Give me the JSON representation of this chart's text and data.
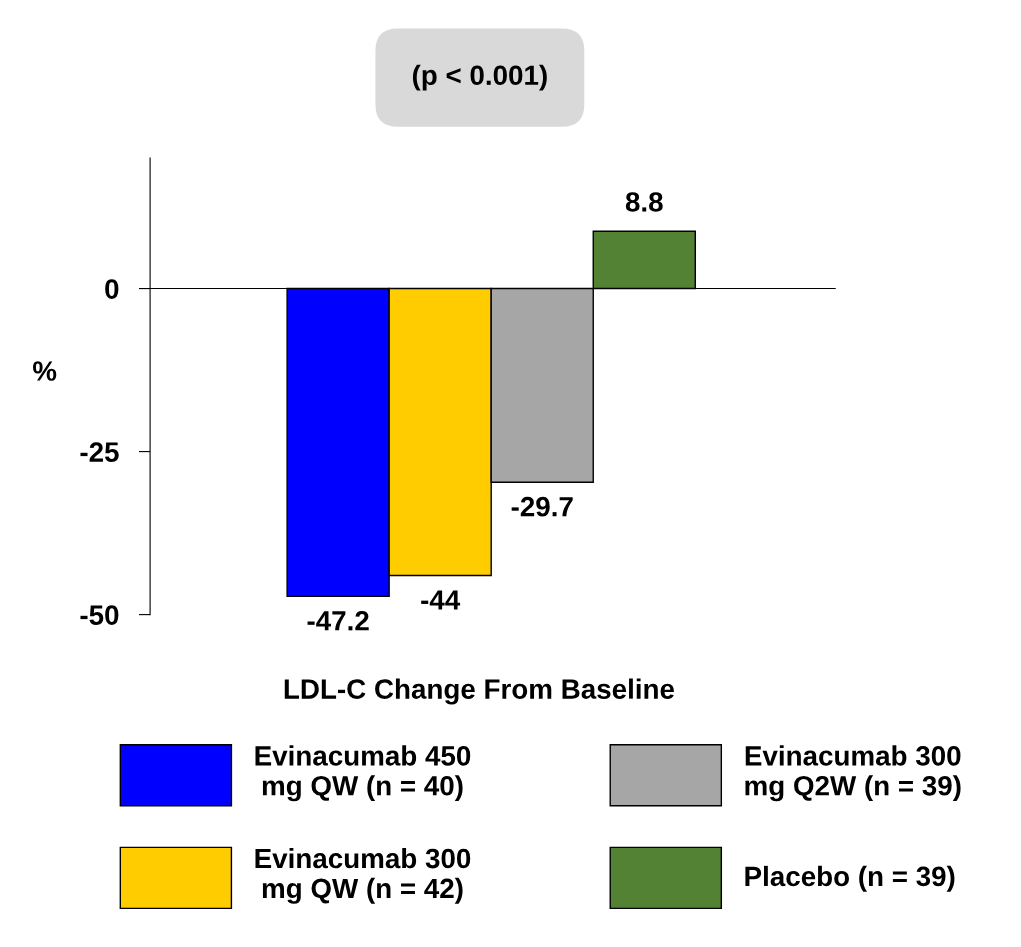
{
  "chart_data": {
    "type": "bar",
    "categories": [
      null
    ],
    "xlabel": "LDL-C Change From Baseline",
    "ylabel": "%",
    "annotations": [
      "(p < 0.001)"
    ],
    "series": [
      {
        "name": "Evinacumab 450 mg QW (n = 40)",
        "color": "#0000ff",
        "values": [
          -47.2
        ]
      },
      {
        "name": "Evinacumab 300 mg QW (n = 42)",
        "color": "#ffcc00",
        "values": [
          -44
        ]
      },
      {
        "name": "Evinacumab 300 mg Q2W (n = 39)",
        "color": "#a6a6a6",
        "values": [
          -29.7
        ]
      },
      {
        "name": "Placebo (n = 39)",
        "color": "#548235",
        "values": [
          8.8
        ]
      }
    ],
    "ylim": [
      -50,
      20
    ],
    "yticks": [
      -50,
      -25,
      0
    ],
    "data_labels": true,
    "legend": "bottom",
    "tick_labels": "y"
  }
}
